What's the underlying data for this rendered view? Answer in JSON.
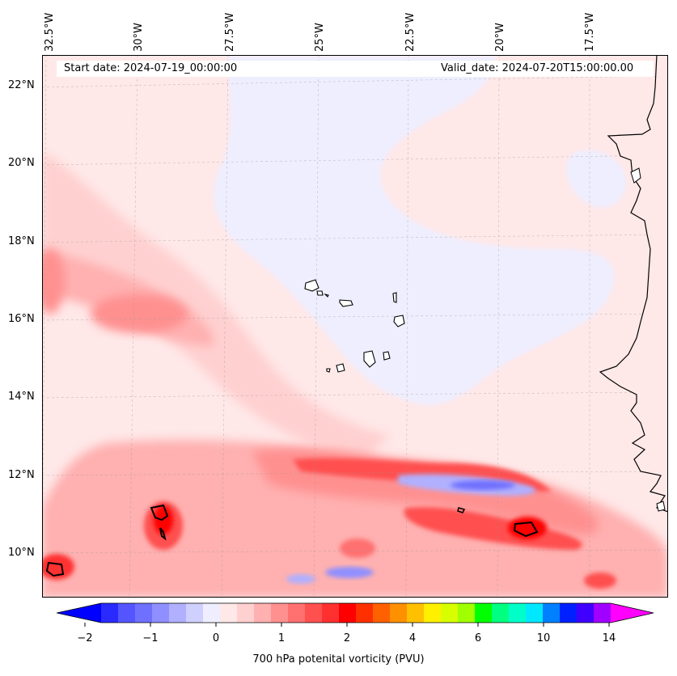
{
  "header": {
    "start_date": "Start date: 2024-07-19_00:00:00",
    "valid_date": "Valid_date: 2024-07-20T15:00:00.00"
  },
  "axes": {
    "longitude_labels": [
      "32.5°W",
      "30°W",
      "27.5°W",
      "25°W",
      "22.5°W",
      "20°W",
      "17.5°W"
    ],
    "latitude_labels": [
      "22°N",
      "20°N",
      "18°N",
      "16°N",
      "14°N",
      "12°N",
      "10°N"
    ]
  },
  "colorbar": {
    "tick_labels": [
      "−2",
      "−1",
      "0",
      "1",
      "2",
      "4",
      "6",
      "10",
      "14"
    ],
    "label": "700 hPa potenital vorticity (PVU)",
    "colors": [
      "#0000ff",
      "#2a2aff",
      "#5555ff",
      "#7070ff",
      "#8f8fff",
      "#b0b0ff",
      "#d0d0ff",
      "#eeeeff",
      "#ffe8e8",
      "#ffd0d0",
      "#ffb0b0",
      "#ff9090",
      "#ff7070",
      "#ff5050",
      "#ff3030",
      "#ff0000",
      "#ff3000",
      "#ff6000",
      "#ff9000",
      "#ffc000",
      "#fff000",
      "#d8ff00",
      "#a0ff00",
      "#00ff00",
      "#00ff80",
      "#00ffc8",
      "#00e8ff",
      "#0080ff",
      "#0020ff",
      "#4000ff",
      "#a000ff",
      "#ff00ff"
    ]
  },
  "palette": {
    "background_pv": "#ffe8e8",
    "low_pv": "#eeeeff",
    "coast": "#000000"
  }
}
